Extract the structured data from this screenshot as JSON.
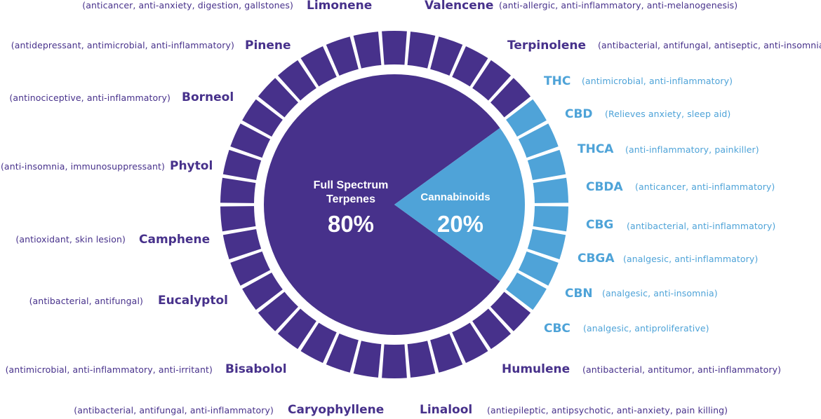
{
  "colors": {
    "terpene": "#47318b",
    "cannabinoid": "#4fa3d8",
    "terpene_label": "#47318b",
    "cannabinoid_label": "#4ea3d8"
  },
  "chart_data": {
    "type": "pie",
    "slices": [
      {
        "label_line1": "Full Spectrum",
        "label_line2": "Terpenes",
        "value": 80,
        "value_label": "80%"
      },
      {
        "label_line1": "Cannabinoids",
        "label_line2": "",
        "value": 20,
        "value_label": "20%"
      }
    ],
    "ring_segments": {
      "terpene": 30,
      "cannabinoid": 8
    }
  },
  "terpenes": [
    {
      "name": "Limonene",
      "desc": "(anticancer, anti-anxiety, digestion, gallstones)"
    },
    {
      "name": "Valencene",
      "desc": "(anti-allergic, anti-inflammatory, anti-melanogenesis)"
    },
    {
      "name": "Pinene",
      "desc": "(antidepressant, antimicrobial, anti-inflammatory)"
    },
    {
      "name": "Terpinolene",
      "desc": "(antibacterial, antifungal, antiseptic, anti-insomnia)"
    },
    {
      "name": "Borneol",
      "desc": "(antinociceptive, anti-inflammatory)"
    },
    {
      "name": "Phytol",
      "desc": "(anti-insomnia, immunosuppressant)"
    },
    {
      "name": "Camphene",
      "desc": "(antioxidant, skin lesion)"
    },
    {
      "name": "Eucalyptol",
      "desc": "(antibacterial, antifungal)"
    },
    {
      "name": "Bisabolol",
      "desc": "(antimicrobial, anti-inflammatory, anti-irritant)"
    },
    {
      "name": "Humulene",
      "desc": "(antibacterial, antitumor, anti-inflammatory)"
    },
    {
      "name": "Caryophyllene",
      "desc": "(antibacterial, antifungal, anti-inflammatory)"
    },
    {
      "name": "Linalool",
      "desc": "(antiepileptic, antipsychotic, anti-anxiety, pain killing)"
    }
  ],
  "cannabinoids": [
    {
      "name": "THC",
      "desc": "(antimicrobial, anti-inflammatory)"
    },
    {
      "name": "CBD",
      "desc": "(Relieves anxiety, sleep aid)"
    },
    {
      "name": "THCA",
      "desc": "(anti-inflammatory, painkiller)"
    },
    {
      "name": "CBDA",
      "desc": "(anticancer, anti-inflammatory)"
    },
    {
      "name": "CBG",
      "desc": "(antibacterial, anti-inflammatory)"
    },
    {
      "name": "CBGA",
      "desc": "(analgesic, anti-inflammatory)"
    },
    {
      "name": "CBN",
      "desc": "(analgesic, anti-insomnia)"
    },
    {
      "name": "CBC",
      "desc": "(analgesic, antiproliferative)"
    }
  ]
}
